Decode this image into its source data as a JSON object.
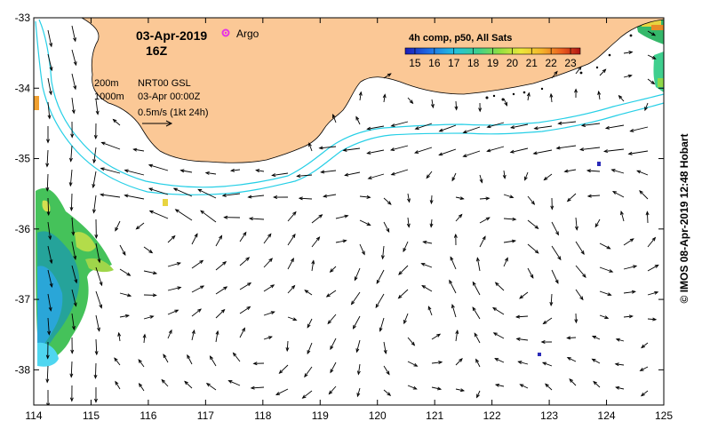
{
  "header": {
    "date": "03-Apr-2019",
    "hour": "16Z",
    "argo_label": "Argo",
    "product_title": "4h comp, p50, All Sats"
  },
  "legend": {
    "depth_200": "200m",
    "depth_1000": "1000m",
    "source": "NRT00 GSL",
    "analysis_time": "03-Apr 00:00Z",
    "scale": "0.5m/s (1kt 24h)"
  },
  "colorbar": {
    "ticks": [
      "15",
      "16",
      "17",
      "18",
      "19",
      "20",
      "21",
      "22",
      "23"
    ],
    "min": 14.5,
    "max": 23.5
  },
  "axes": {
    "x_ticks": [
      "114",
      "115",
      "116",
      "117",
      "118",
      "119",
      "120",
      "121",
      "122",
      "123",
      "124",
      "125"
    ],
    "y_ticks": [
      "-33",
      "-34",
      "-35",
      "-36",
      "-37",
      "-38"
    ],
    "lon_range": [
      114,
      125
    ],
    "lat_range": [
      -38.5,
      -33
    ]
  },
  "credit": "© IMOS 08-Apr-2019 12:48 Hobart",
  "colors": {
    "land": "#fbc896",
    "contour": "#26cfe6",
    "argo": "#e633e6",
    "arrow": "#000000"
  }
}
